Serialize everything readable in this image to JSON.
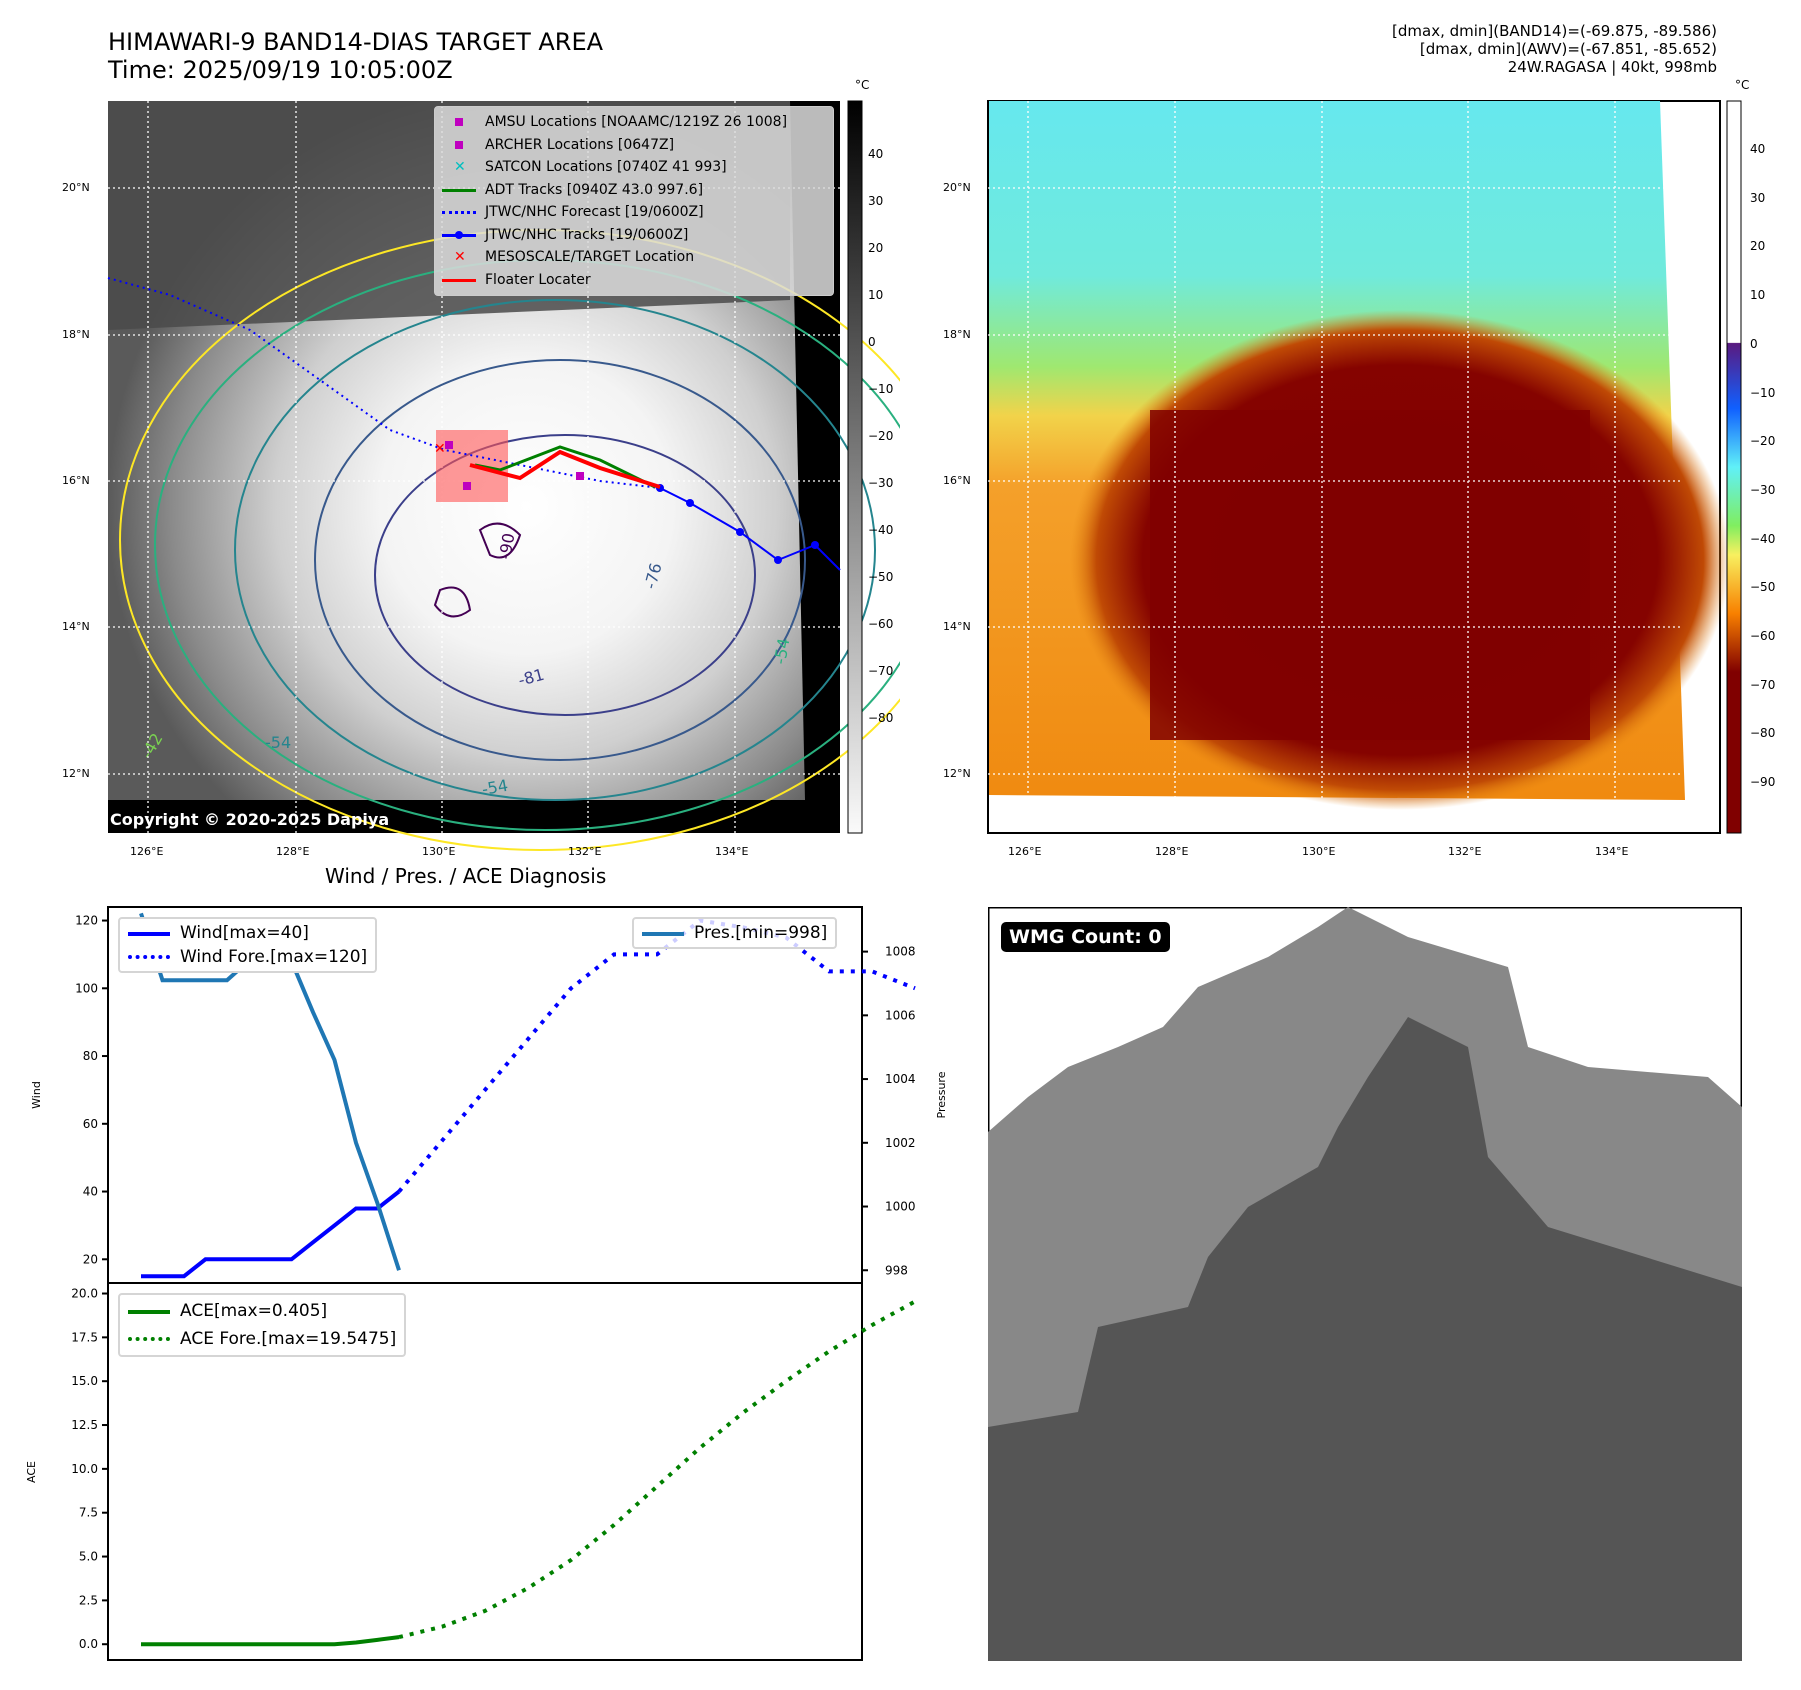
{
  "header": {
    "title_line1": "HIMAWARI-9 BAND14-DIAS TARGET AREA",
    "title_line2": "Time: 2025/09/19 10:05:00Z",
    "right_line1": "[dmax, dmin](BAND14)=(-69.875, -89.586)",
    "right_line2": "[dmax, dmin](AWV)=(-67.851, -85.652)",
    "right_line3": "24W.RAGASA | 40kt, 998mb"
  },
  "map_left": {
    "lat_labels": [
      "20°N",
      "18°N",
      "16°N",
      "14°N",
      "12°N"
    ],
    "lon_labels": [
      "126°E",
      "128°E",
      "130°E",
      "132°E",
      "134°E"
    ],
    "copyright": "Copyright © 2020-2025 Dapiya",
    "contour_labels": [
      "-90",
      "-90",
      "-81",
      "-76",
      "-76",
      "-54",
      "-54",
      "-54",
      "-42",
      "-31"
    ],
    "legend": [
      {
        "label": "AMSU Locations [NOAAMC/1219Z 26 1008]",
        "marker": "square",
        "color": "#bf00bf"
      },
      {
        "label": "ARCHER Locations [0647Z]",
        "marker": "square",
        "color": "#bf00bf"
      },
      {
        "label": "SATCON Locations [0740Z 41 993]",
        "marker": "x",
        "color": "#00bfbf"
      },
      {
        "label": "ADT Tracks [0940Z 43.0 997.6]",
        "marker": "line",
        "color": "#008000"
      },
      {
        "label": "JTWC/NHC Forecast [19/0600Z]",
        "marker": "dotted",
        "color": "#0000ff"
      },
      {
        "label": "JTWC/NHC Tracks [19/0600Z]",
        "marker": "line-dot",
        "color": "#0000ff"
      },
      {
        "label": "MESOSCALE/TARGET Location",
        "marker": "x",
        "color": "#ff0000"
      },
      {
        "label": "Floater Locater",
        "marker": "line",
        "color": "#ff0000"
      }
    ],
    "colorbar": {
      "unit": "°C",
      "ticks": [
        "40",
        "30",
        "20",
        "10",
        "0",
        "−10",
        "−20",
        "−30",
        "−40",
        "−50",
        "−60",
        "−70",
        "−80"
      ]
    }
  },
  "map_right": {
    "lat_labels": [
      "20°N",
      "18°N",
      "16°N",
      "14°N",
      "12°N"
    ],
    "lon_labels": [
      "126°E",
      "128°E",
      "130°E",
      "132°E",
      "134°E"
    ],
    "colorbar": {
      "unit": "°C",
      "ticks": [
        "40",
        "30",
        "20",
        "10",
        "0",
        "−10",
        "−20",
        "−30",
        "−40",
        "−50",
        "−60",
        "−70",
        "−80",
        "−90"
      ]
    }
  },
  "wmg": {
    "badge": "WMG Count: 0"
  },
  "chart_data": [
    {
      "type": "line",
      "title": "Wind / Pres. / ACE Diagnosis",
      "ylabel": "Wind",
      "y2label": "Pressure",
      "ylim": [
        13,
        124
      ],
      "y2lim": [
        997.6,
        1009.4
      ],
      "yticks": [
        "120",
        "100",
        "80",
        "60",
        "40",
        "20"
      ],
      "y2ticks": [
        "1008",
        "1006",
        "1004",
        "1002",
        "1000",
        "998"
      ],
      "series": [
        {
          "name": "Wind[max=40]",
          "style": "solid",
          "color": "#0000ff",
          "axis": "left",
          "x": [
            0,
            1,
            2,
            3,
            4,
            5,
            6,
            7,
            8,
            9,
            10,
            11,
            12
          ],
          "values": [
            15,
            15,
            15,
            20,
            20,
            20,
            20,
            20,
            25,
            30,
            35,
            35,
            40
          ]
        },
        {
          "name": "Wind Fore.[max=120]",
          "style": "dotted",
          "color": "#0000ff",
          "axis": "left",
          "x": [
            12,
            14,
            16,
            18,
            20,
            22,
            24,
            26,
            28,
            30,
            32,
            34,
            36
          ],
          "values": [
            40,
            55,
            70,
            85,
            100,
            110,
            110,
            120,
            118,
            115,
            105,
            105,
            100
          ]
        },
        {
          "name": "Pres.[min=998]",
          "style": "solid",
          "color": "#1f77b4",
          "axis": "right",
          "x": [
            0,
            1,
            2,
            3,
            4,
            5,
            6,
            7,
            8,
            9,
            10,
            11,
            12
          ],
          "values": [
            1009.2,
            1007.1,
            1007.1,
            1007.1,
            1007.1,
            1007.7,
            1007.7,
            1007.7,
            1006.1,
            1004.6,
            1002.0,
            1000.1,
            998.0
          ]
        }
      ],
      "legend_left": [
        "Wind[max=40]",
        "Wind Fore.[max=120]"
      ],
      "legend_right": [
        "Pres.[min=998]"
      ]
    },
    {
      "type": "line",
      "ylabel": "ACE",
      "ylim": [
        -0.9,
        20.6
      ],
      "yticks": [
        "20.0",
        "17.5",
        "15.0",
        "12.5",
        "10.0",
        "7.5",
        "5.0",
        "2.5",
        "0.0"
      ],
      "series": [
        {
          "name": "ACE[max=0.405]",
          "style": "solid",
          "color": "#008000",
          "x": [
            0,
            1,
            2,
            3,
            4,
            5,
            6,
            7,
            8,
            9,
            10,
            11,
            12
          ],
          "values": [
            0,
            0,
            0,
            0,
            0,
            0,
            0,
            0,
            0,
            0,
            0.1,
            0.25,
            0.405
          ]
        },
        {
          "name": "ACE Fore.[max=19.5475]",
          "style": "dotted",
          "color": "#008000",
          "x": [
            12,
            14,
            16,
            18,
            20,
            22,
            24,
            26,
            28,
            30,
            32,
            34,
            36
          ],
          "values": [
            0.405,
            1.0,
            1.9,
            3.2,
            4.8,
            6.8,
            9.0,
            11.2,
            13.2,
            15.0,
            16.7,
            18.2,
            19.5475
          ]
        }
      ],
      "legend": [
        "ACE[max=0.405]",
        "ACE Fore.[max=19.5475]"
      ]
    }
  ]
}
